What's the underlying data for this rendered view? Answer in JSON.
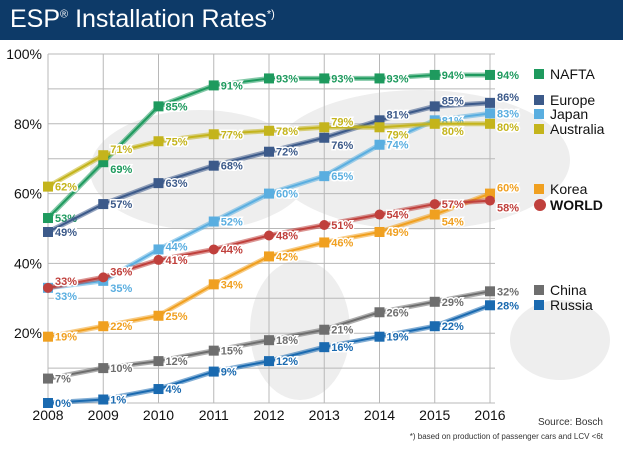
{
  "title": {
    "main": "ESP",
    "reg": "®",
    "rest": " Installation Rates",
    "sup": "*)"
  },
  "source": "Source: Bosch",
  "footnote": "*) based on production of passenger cars and LCV <6t",
  "chart_data": {
    "type": "line",
    "x": [
      2008,
      2009,
      2010,
      2011,
      2012,
      2013,
      2014,
      2015,
      2016
    ],
    "ylim": [
      0,
      100
    ],
    "yticks": [
      "20%",
      "40%",
      "60%",
      "80%",
      "100%"
    ],
    "grid": true,
    "legend": "right",
    "series": [
      {
        "name": "NAFTA",
        "color": "#1e9a5e",
        "marker": "square",
        "values": [
          53,
          69,
          85,
          91,
          93,
          93,
          93,
          94,
          94
        ]
      },
      {
        "name": "Europe",
        "color": "#3c5a8a",
        "marker": "square",
        "values": [
          49,
          57,
          63,
          68,
          72,
          76,
          81,
          85,
          86
        ]
      },
      {
        "name": "Japan",
        "color": "#5aaee0",
        "marker": "square",
        "values": [
          33,
          35,
          44,
          52,
          60,
          65,
          74,
          81,
          83
        ]
      },
      {
        "name": "Australia",
        "color": "#c4b41c",
        "marker": "square",
        "values": [
          62,
          71,
          75,
          77,
          78,
          79,
          79,
          80,
          80
        ]
      },
      {
        "name": "Korea",
        "color": "#f0a020",
        "marker": "square",
        "values": [
          19,
          22,
          25,
          34,
          42,
          46,
          49,
          54,
          60
        ]
      },
      {
        "name": "WORLD",
        "color": "#c0403c",
        "marker": "circle",
        "values": [
          33,
          36,
          41,
          44,
          48,
          51,
          54,
          57,
          58
        ]
      },
      {
        "name": "China",
        "color": "#6e6e6e",
        "marker": "square",
        "values": [
          7,
          10,
          12,
          15,
          18,
          21,
          26,
          29,
          32
        ]
      },
      {
        "name": "Russia",
        "color": "#1a6ab0",
        "marker": "square",
        "values": [
          0,
          1,
          4,
          9,
          12,
          16,
          19,
          22,
          28
        ]
      }
    ]
  }
}
